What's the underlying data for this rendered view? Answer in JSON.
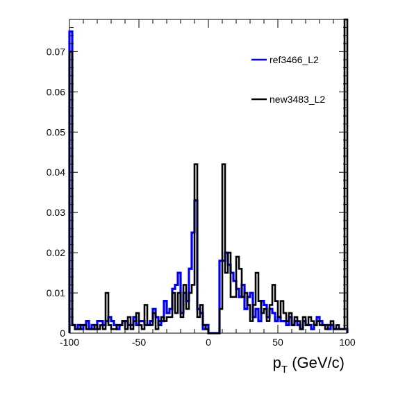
{
  "chart_data": {
    "type": "line",
    "subtype": "histogram-step",
    "title": "",
    "xlabel": "p",
    "xlabel_subscript": "T",
    "xlabel_suffix": " (GeV/c)",
    "ylabel": "",
    "xlim": [
      -100,
      100
    ],
    "ylim": [
      0,
      0.078
    ],
    "bin_width": 2,
    "grid": false,
    "legend_position": "top-right",
    "x_ticks": [
      {
        "value": -100,
        "label": "-100"
      },
      {
        "value": -50,
        "label": "-50"
      },
      {
        "value": 0,
        "label": "0"
      },
      {
        "value": 50,
        "label": "50"
      },
      {
        "value": 100,
        "label": "100"
      }
    ],
    "y_ticks": [
      {
        "value": 0,
        "label": "0"
      },
      {
        "value": 0.01,
        "label": "0.01"
      },
      {
        "value": 0.02,
        "label": "0.02"
      },
      {
        "value": 0.03,
        "label": "0.03"
      },
      {
        "value": 0.04,
        "label": "0.04"
      },
      {
        "value": 0.05,
        "label": "0.05"
      },
      {
        "value": 0.06,
        "label": "0.06"
      },
      {
        "value": 0.07,
        "label": "0.07"
      }
    ],
    "series": [
      {
        "name": "ref3466_L2",
        "color": "#0000ee",
        "stroke_style": "heavy",
        "values": [
          0.075,
          0.002,
          0.001,
          0.002,
          0.001,
          0.002,
          0.003,
          0.001,
          0.002,
          0.001,
          0.003,
          0.003,
          0.002,
          0.003,
          0.004,
          0.003,
          0.002,
          0.001,
          0.002,
          0.003,
          0.003,
          0.002,
          0.002,
          0.004,
          0.002,
          0.003,
          0.003,
          0.002,
          0.002,
          0.003,
          0.006,
          0.004,
          0.002,
          0.003,
          0.008,
          0.005,
          0.006,
          0.011,
          0.012,
          0.015,
          0.005,
          0.01,
          0.008,
          0.016,
          0.025,
          0.033,
          0.006,
          0.005,
          0.001,
          0.002,
          0.0,
          0.0,
          0.0,
          0.0,
          0.018,
          0.018,
          0.02,
          0.017,
          0.015,
          0.013,
          0.011,
          0.009,
          0.012,
          0.006,
          0.009,
          0.01,
          0.004,
          0.006,
          0.003,
          0.008,
          0.007,
          0.004,
          0.006,
          0.005,
          0.003,
          0.004,
          0.003,
          0.003,
          0.002,
          0.004,
          0.002,
          0.003,
          0.002,
          0.001,
          0.003,
          0.002,
          0.002,
          0.001,
          0.002,
          0.004,
          0.003,
          0.002,
          0.002,
          0.001,
          0.002,
          0.001,
          0.001,
          0.001,
          0.001,
          0.001
        ]
      },
      {
        "name": "new3483_L2",
        "color": "#000000",
        "stroke_style": "heavy",
        "values": [
          0.07,
          0.002,
          0.001,
          0.001,
          0.002,
          0.002,
          0.001,
          0.001,
          0.001,
          0.002,
          0.001,
          0.002,
          0.001,
          0.01,
          0.002,
          0.001,
          0.001,
          0.002,
          0.002,
          0.003,
          0.001,
          0.004,
          0.001,
          0.003,
          0.005,
          0.002,
          0.001,
          0.007,
          0.002,
          0.002,
          0.005,
          0.001,
          0.003,
          0.004,
          0.003,
          0.004,
          0.004,
          0.01,
          0.005,
          0.01,
          0.004,
          0.012,
          0.006,
          0.01,
          0.012,
          0.042,
          0.004,
          0.007,
          0.002,
          0.001,
          0.0,
          0.0,
          0.0,
          0.0,
          0.006,
          0.042,
          0.015,
          0.02,
          0.009,
          0.009,
          0.019,
          0.016,
          0.009,
          0.01,
          0.007,
          0.003,
          0.007,
          0.015,
          0.008,
          0.005,
          0.006,
          0.003,
          0.007,
          0.012,
          0.008,
          0.004,
          0.008,
          0.005,
          0.003,
          0.005,
          0.002,
          0.004,
          0.003,
          0.001,
          0.004,
          0.002,
          0.004,
          0.003,
          0.002,
          0.003,
          0.002,
          0.002,
          0.001,
          0.002,
          0.003,
          0.001,
          0.002,
          0.001,
          0.001,
          0.078
        ]
      }
    ]
  }
}
